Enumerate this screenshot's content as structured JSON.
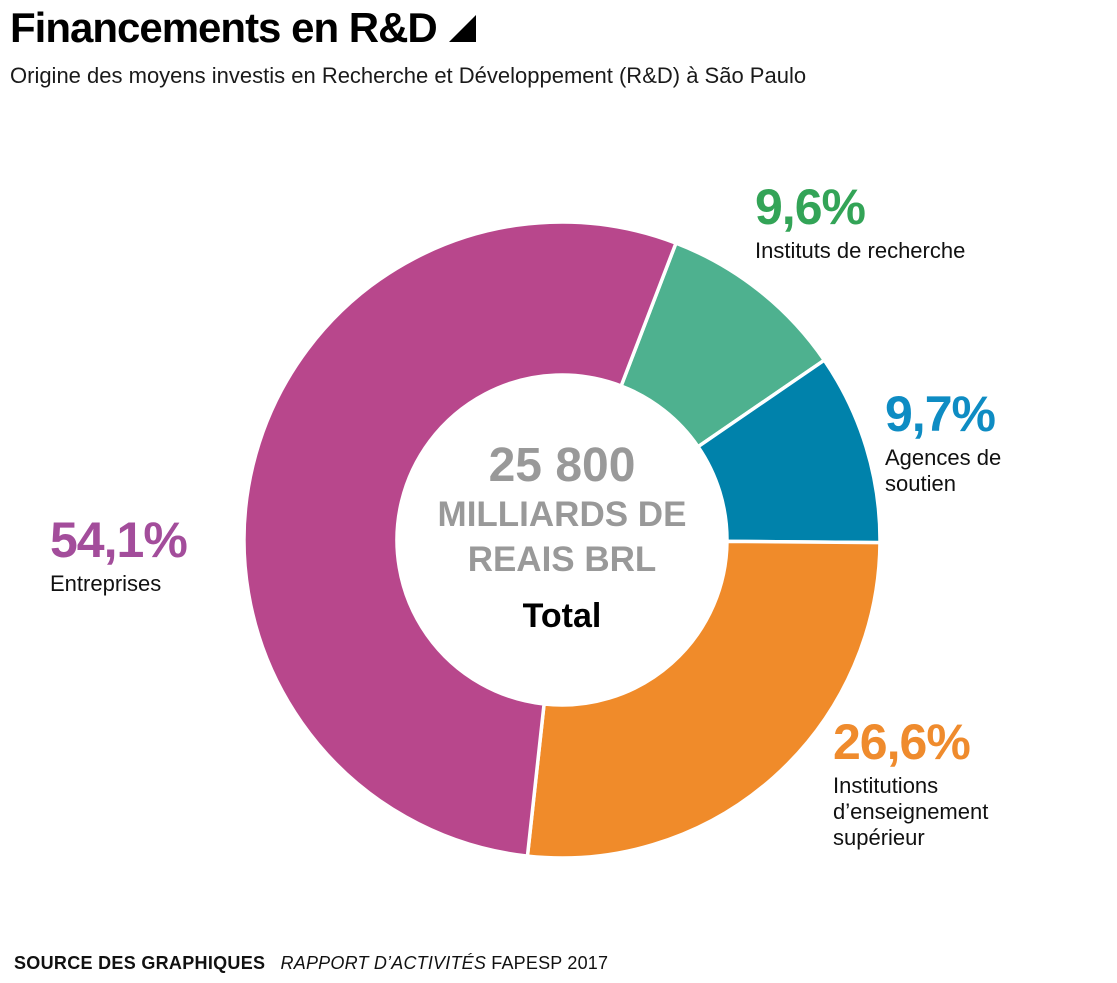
{
  "header": {
    "title": "Financements en R&D",
    "subtitle": "Origine des moyens investis en Recherche et Développement (R&D) à São Paulo"
  },
  "chart_data": {
    "type": "pie",
    "variant": "donut",
    "title": "Financements en R&D",
    "subtitle": "Origine des moyens investis en Recherche et Développement (R&D) à São Paulo",
    "unit": "percent",
    "geometry": {
      "start_angle_deg": 21,
      "outer_radius": 318,
      "inner_radius": 165,
      "gap_stroke": "#ffffff"
    },
    "center_label": {
      "lines": [
        "25 800",
        "MILLIARDS DE",
        "REAIS BRL"
      ],
      "caption": "Total",
      "value_color": "#999999",
      "caption_color": "#000000"
    },
    "slices": [
      {
        "name": "Instituts de recherche",
        "pct": 9.6,
        "pct_label": "9,6%",
        "slice_color": "#4eb18f",
        "text_color": "#33a457",
        "name_lines": [
          "Instituts de recherche"
        ]
      },
      {
        "name": "Agences de soutien",
        "pct": 9.7,
        "pct_label": "9,7%",
        "slice_color": "#0082ab",
        "text_color": "#0e8cc3",
        "name_lines": [
          "Agences de",
          "soutien"
        ]
      },
      {
        "name": "Institutions d’enseignement supérieur",
        "pct": 26.6,
        "pct_label": "26,6%",
        "slice_color": "#f08b2a",
        "text_color": "#ef8b2d",
        "name_lines": [
          "Institutions",
          "d’enseignement",
          "supérieur"
        ]
      },
      {
        "name": "Entreprises",
        "pct": 54.1,
        "pct_label": "54,1%",
        "slice_color": "#b8478c",
        "text_color": "#a34d9b",
        "name_lines": [
          "Entreprises"
        ]
      }
    ]
  },
  "footer": {
    "source_label": "SOURCE DES GRAPHIQUES",
    "source_report": "RAPPORT D’ACTIVITÉS",
    "source_suffix": "FAPESP 2017"
  }
}
